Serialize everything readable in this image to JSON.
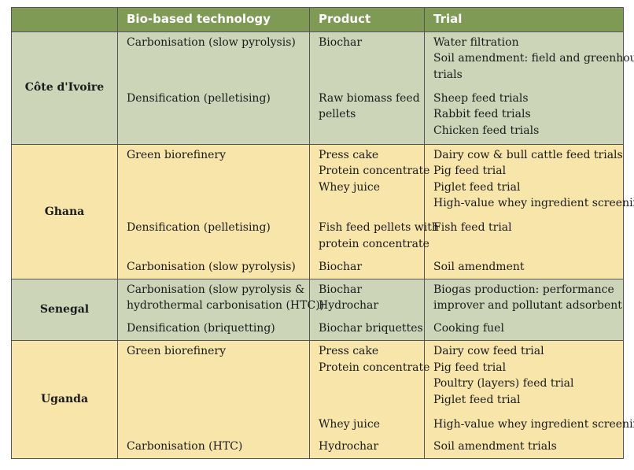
{
  "headers": [
    "",
    "Bio-based technology",
    "Product",
    "Trial"
  ],
  "groups": [
    {
      "country": "Côte d'Ivoire",
      "theme": "green",
      "rows": [
        {
          "tech": [
            "Carbonisation (slow pyrolysis)"
          ],
          "product": [
            "Biochar"
          ],
          "trial": [
            "Water filtration",
            "Soil amendment: field and greenhouse",
            "trials"
          ]
        },
        {
          "tech": [
            "Densification (pelletising)"
          ],
          "product": [
            "Raw biomass feed",
            "pellets"
          ],
          "trial": [
            "Sheep feed trials",
            "Rabbit feed trials",
            "Chicken feed trials"
          ]
        }
      ]
    },
    {
      "country": "Ghana",
      "theme": "yellow",
      "rows": [
        {
          "tech": [
            "Green biorefinery"
          ],
          "product": [
            "Press cake",
            "Protein concentrate",
            "Whey juice"
          ],
          "trial": [
            "Dairy cow & bull cattle feed trials",
            "Pig feed trial",
            "Piglet feed trial",
            "High-value whey ingredient screening"
          ]
        },
        {
          "tech": [
            "Densification (pelletising)"
          ],
          "product": [
            "Fish feed pellets with",
            "protein concentrate"
          ],
          "trial": [
            "Fish feed trial"
          ]
        },
        {
          "tech": [
            "Carbonisation (slow pyrolysis)"
          ],
          "product": [
            "Biochar"
          ],
          "trial": [
            "Soil amendment"
          ]
        }
      ]
    },
    {
      "country": "Senegal",
      "theme": "green",
      "rows": [
        {
          "tech": [
            "Carbonisation (slow pyrolysis &",
            "hydrothermal carbonisation (HTC))"
          ],
          "product": [
            "Biochar",
            "Hydrochar"
          ],
          "trial": [
            "Biogas production: performance",
            "improver and pollutant adsorbent"
          ]
        },
        {
          "tech": [
            "Densification (briquetting)"
          ],
          "product": [
            "Biochar briquettes"
          ],
          "trial": [
            "Cooking fuel"
          ]
        }
      ]
    },
    {
      "country": "Uganda",
      "theme": "yellow",
      "rows": [
        {
          "tech": [
            "Green biorefinery"
          ],
          "product": [
            "Press cake",
            "Protein concentrate"
          ],
          "trial": [
            "Dairy cow feed trial",
            "Pig feed trial",
            "Poultry (layers) feed trial",
            "Piglet feed trial"
          ]
        },
        {
          "tech": [
            ""
          ],
          "product": [
            "Whey juice"
          ],
          "trial": [
            "High-value whey ingredient screening"
          ]
        },
        {
          "tech": [
            "Carbonisation (HTC)"
          ],
          "product": [
            "Hydrochar"
          ],
          "trial": [
            "Soil amendment trials"
          ]
        }
      ]
    }
  ]
}
